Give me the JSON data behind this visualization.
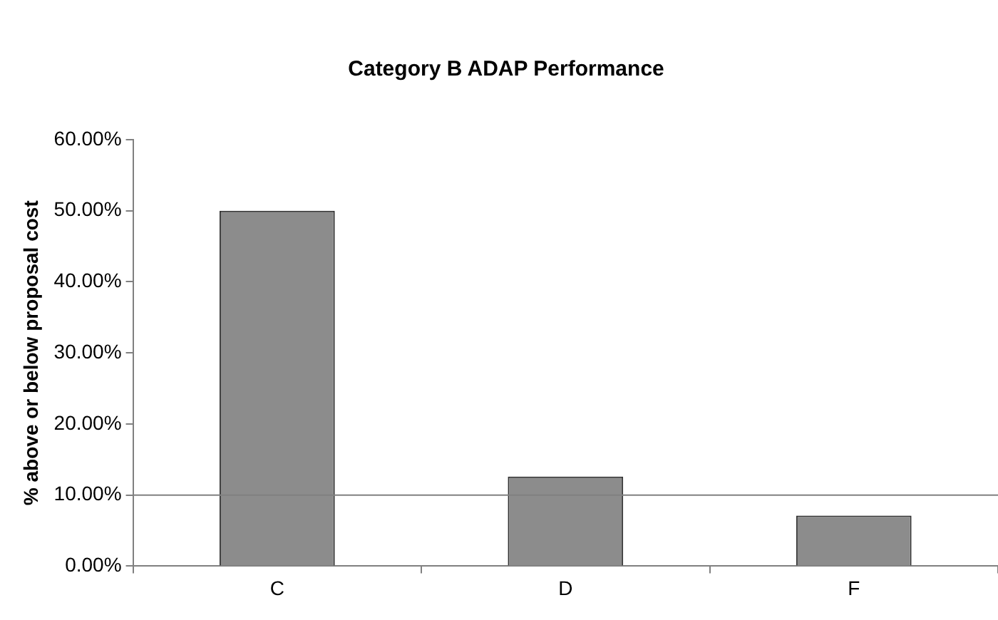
{
  "chart_data": {
    "type": "bar",
    "title": "Category B ADAP Performance",
    "ylabel": "% above or below proposal cost",
    "categories": [
      "C",
      "D",
      "F"
    ],
    "values": [
      50,
      12.6,
      7.1
    ],
    "color": "#8c8c8c",
    "ylim": [
      0,
      60
    ],
    "yticks": [
      {
        "value": 0,
        "label": "0.00%"
      },
      {
        "value": 10,
        "label": "10.00%"
      },
      {
        "value": 20,
        "label": "20.00%"
      },
      {
        "value": 30,
        "label": "30.00%"
      },
      {
        "value": 40,
        "label": "40.00%"
      },
      {
        "value": 50,
        "label": "50.00%"
      },
      {
        "value": 60,
        "label": "60.00%"
      }
    ],
    "grid": false,
    "legend": false,
    "ref_lines": [
      {
        "axis": "y",
        "value": 10,
        "color": "#808080"
      }
    ]
  }
}
